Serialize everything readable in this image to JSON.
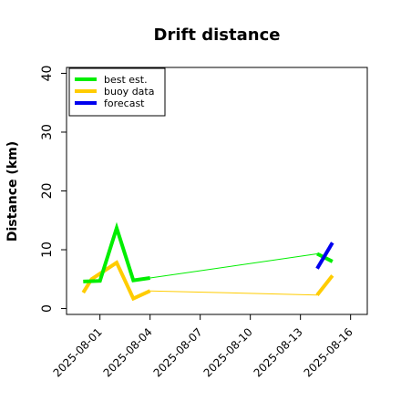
{
  "chart_data": {
    "type": "line",
    "title": "Drift distance",
    "xlabel": "",
    "ylabel": "Distance (km)",
    "xlim": [
      "2025-07-30",
      "2025-08-17"
    ],
    "ylim": [
      -1,
      41
    ],
    "yticks": [
      0,
      10,
      20,
      30,
      40
    ],
    "xticks": [
      {
        "value": "2025-08-01",
        "label": "2025-08-01",
        "color": "#000000"
      },
      {
        "value": "2025-08-04",
        "label": "2025-08-04",
        "color": "#000000"
      },
      {
        "value": "2025-08-07",
        "label": "2025-08-07",
        "color": "#228B22"
      },
      {
        "value": "2025-08-10",
        "label": "2025-08-10",
        "color": "#000000"
      },
      {
        "value": "2025-08-13",
        "label": "2025-08-13",
        "color": "#000000"
      },
      {
        "value": "2025-08-16",
        "label": "2025-08-16",
        "color": "#000000"
      }
    ],
    "legend": {
      "placement": "top-left",
      "entries": [
        {
          "name": "best est.",
          "color": "#00ee00"
        },
        {
          "name": "buoy data",
          "color": "#ffcc00"
        },
        {
          "name": "forecast",
          "color": "#0000ee"
        }
      ]
    },
    "series": [
      {
        "name": "buoy data",
        "color": "#ffcc00",
        "segments": [
          {
            "width": "thick",
            "points": [
              [
                "2025-07-31T00:00",
                2.7
              ],
              [
                "2025-07-31T12:00",
                5.0
              ],
              [
                "2025-08-02T00:00",
                7.8
              ],
              [
                "2025-08-03T00:00",
                1.7
              ],
              [
                "2025-08-04T00:00",
                3.0
              ]
            ]
          },
          {
            "width": "thin",
            "points": [
              [
                "2025-08-04T00:00",
                3.0
              ],
              [
                "2025-08-14T00:00",
                2.3
              ]
            ]
          },
          {
            "width": "thick",
            "points": [
              [
                "2025-08-14T00:00",
                2.3
              ],
              [
                "2025-08-14T22:00",
                5.6
              ]
            ]
          }
        ]
      },
      {
        "name": "best est.",
        "color": "#00ee00",
        "segments": [
          {
            "width": "thick",
            "points": [
              [
                "2025-07-31T00:00",
                4.6
              ],
              [
                "2025-08-01T00:00",
                4.7
              ],
              [
                "2025-08-02T00:00",
                13.7
              ],
              [
                "2025-08-03T00:00",
                4.8
              ],
              [
                "2025-08-04T00:00",
                5.2
              ]
            ]
          },
          {
            "width": "thin",
            "points": [
              [
                "2025-08-04T00:00",
                5.2
              ],
              [
                "2025-08-14T00:00",
                9.3
              ]
            ]
          },
          {
            "width": "thick",
            "points": [
              [
                "2025-08-14T00:00",
                9.3
              ],
              [
                "2025-08-14T22:00",
                8.0
              ]
            ]
          }
        ]
      },
      {
        "name": "forecast",
        "color": "#0000ee",
        "segments": [
          {
            "width": "thick",
            "points": [
              [
                "2025-08-14T00:00",
                6.8
              ],
              [
                "2025-08-14T22:00",
                11.2
              ]
            ]
          }
        ]
      }
    ]
  }
}
